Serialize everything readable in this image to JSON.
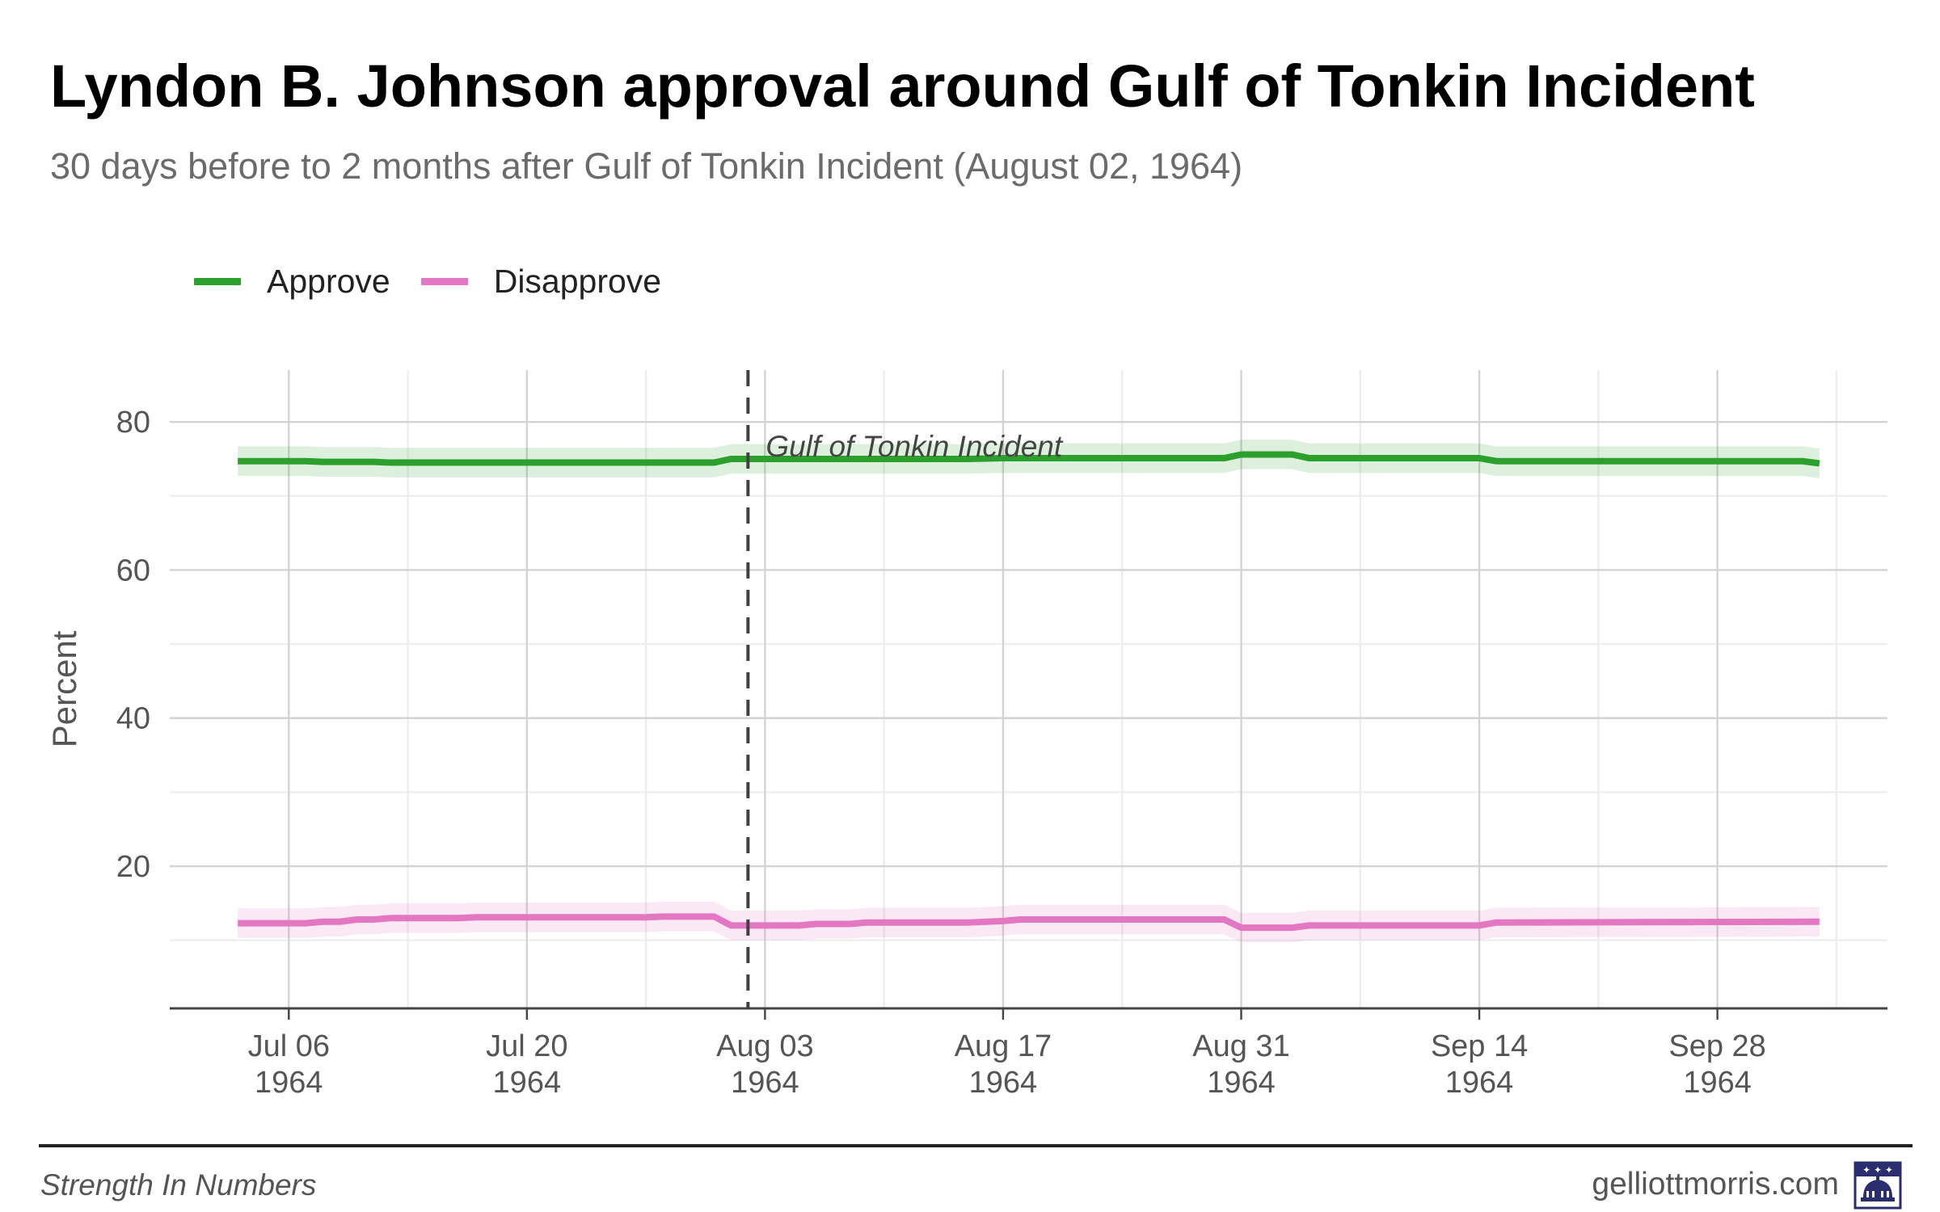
{
  "chart_data": {
    "type": "line",
    "title": "Lyndon B. Johnson approval around Gulf of Tonkin Incident",
    "subtitle": "30 days before to 2 months after Gulf of Tonkin Incident (August 02, 1964)",
    "ylabel": "Percent",
    "xlabel": "",
    "ylim": [
      0.8,
      87
    ],
    "yticks": [
      20,
      40,
      60,
      80
    ],
    "xlim": [
      "1964-06-29",
      "1964-10-08"
    ],
    "xticks": [
      {
        "date": "1964-07-06",
        "line1": "Jul 06",
        "line2": "1964"
      },
      {
        "date": "1964-07-20",
        "line1": "Jul 20",
        "line2": "1964"
      },
      {
        "date": "1964-08-03",
        "line1": "Aug 03",
        "line2": "1964"
      },
      {
        "date": "1964-08-17",
        "line1": "Aug 17",
        "line2": "1964"
      },
      {
        "date": "1964-08-31",
        "line1": "Aug 31",
        "line2": "1964"
      },
      {
        "date": "1964-09-14",
        "line1": "Sep 14",
        "line2": "1964"
      },
      {
        "date": "1964-09-28",
        "line1": "Sep 28",
        "line2": "1964"
      }
    ],
    "grid": true,
    "legend_position": "top-left",
    "event": {
      "date": "1964-08-02",
      "label": "Gulf of Tonkin Incident"
    },
    "series": [
      {
        "name": "Approve",
        "color": "#2ca02c",
        "band_color": "#2ca02c",
        "band_half_width": 2,
        "points": [
          [
            "1964-07-03",
            74.7
          ],
          [
            "1964-07-07",
            74.7
          ],
          [
            "1964-07-08",
            74.6
          ],
          [
            "1964-07-11",
            74.6
          ],
          [
            "1964-07-12",
            74.5
          ],
          [
            "1964-07-24",
            74.5
          ],
          [
            "1964-07-31",
            74.5
          ],
          [
            "1964-08-01",
            75.0
          ],
          [
            "1964-08-15",
            75.0
          ],
          [
            "1964-08-17",
            75.1
          ],
          [
            "1964-08-30",
            75.1
          ],
          [
            "1964-08-31",
            75.6
          ],
          [
            "1964-09-03",
            75.6
          ],
          [
            "1964-09-04",
            75.1
          ],
          [
            "1964-09-14",
            75.1
          ],
          [
            "1964-09-15",
            74.7
          ],
          [
            "1964-10-03",
            74.7
          ],
          [
            "1964-10-04",
            74.4
          ]
        ]
      },
      {
        "name": "Disapprove",
        "color": "#e377c2",
        "band_color": "#e377c2",
        "band_half_width": 2,
        "points": [
          [
            "1964-07-03",
            12.3
          ],
          [
            "1964-07-07",
            12.3
          ],
          [
            "1964-07-08",
            12.5
          ],
          [
            "1964-07-09",
            12.5
          ],
          [
            "1964-07-10",
            12.8
          ],
          [
            "1964-07-11",
            12.8
          ],
          [
            "1964-07-12",
            13.0
          ],
          [
            "1964-07-16",
            13.0
          ],
          [
            "1964-07-17",
            13.1
          ],
          [
            "1964-07-27",
            13.1
          ],
          [
            "1964-07-28",
            13.2
          ],
          [
            "1964-07-31",
            13.2
          ],
          [
            "1964-08-01",
            12.0
          ],
          [
            "1964-08-05",
            12.0
          ],
          [
            "1964-08-06",
            12.2
          ],
          [
            "1964-08-08",
            12.2
          ],
          [
            "1964-08-09",
            12.4
          ],
          [
            "1964-08-15",
            12.4
          ],
          [
            "1964-08-17",
            12.6
          ],
          [
            "1964-08-18",
            12.8
          ],
          [
            "1964-08-30",
            12.8
          ],
          [
            "1964-08-31",
            11.7
          ],
          [
            "1964-09-03",
            11.7
          ],
          [
            "1964-09-04",
            12.0
          ],
          [
            "1964-09-14",
            12.0
          ],
          [
            "1964-09-15",
            12.4
          ],
          [
            "1964-10-04",
            12.5
          ]
        ]
      }
    ]
  },
  "footer": {
    "left": "Strength In Numbers",
    "right": "gelliottmorris.com",
    "logo_icon": "capitol-dome-icon"
  }
}
